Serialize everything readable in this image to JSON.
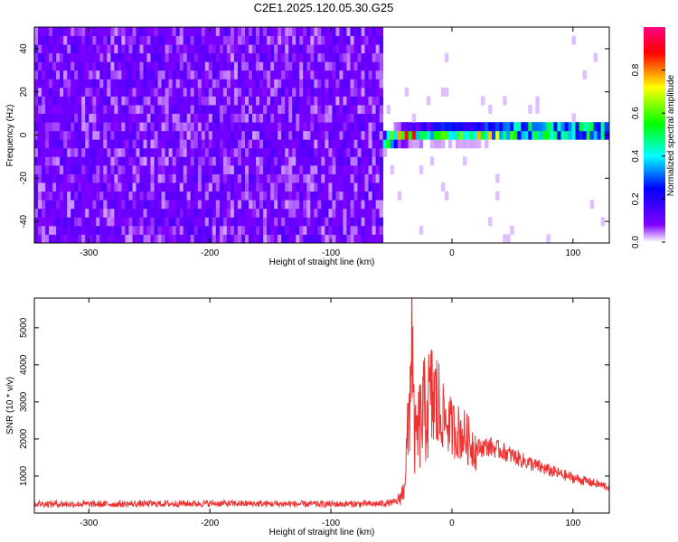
{
  "title": "C2E1.2025.120.05.30.G25",
  "chart_data": [
    {
      "type": "heatmap",
      "xlabel": "Height of straight line (km)",
      "ylabel": "Frequency (Hz)",
      "xlim": [
        -345,
        130
      ],
      "ylim": [
        -50,
        50
      ],
      "x_ticks": [
        -300,
        -200,
        -100,
        0,
        100
      ],
      "y_ticks": [
        -40,
        -20,
        0,
        20,
        40
      ],
      "noise_region": {
        "x_range": [
          -345,
          -57
        ],
        "level": 0.1
      },
      "signal_band": {
        "x_range": [
          -57,
          130
        ],
        "center_hz": [
          [
            -57,
            -3
          ],
          [
            -45,
            0
          ],
          [
            -20,
            1
          ],
          [
            20,
            1
          ],
          [
            60,
            2
          ],
          [
            100,
            2
          ],
          [
            130,
            2
          ]
        ],
        "peak_amplitude": 0.95
      },
      "colorbar": {
        "label": "Normalized spectral amplitude",
        "range": [
          0,
          1
        ],
        "ticks": [
          0.0,
          0.2,
          0.4,
          0.6,
          0.8
        ],
        "colors": [
          "#ffffff",
          "#8000ff",
          "#0000ff",
          "#00ffff",
          "#00ff00",
          "#ffff00",
          "#ff0000",
          "#ff0080"
        ]
      }
    },
    {
      "type": "line",
      "xlabel": "Height of straight line (km)",
      "ylabel": "SNR (10 * v/v)",
      "xlim": [
        -345,
        130
      ],
      "ylim": [
        0,
        5800
      ],
      "x_ticks": [
        -300,
        -200,
        -100,
        0,
        100
      ],
      "y_ticks": [
        1000,
        2000,
        3000,
        4000,
        5000
      ],
      "color": "#ee3333",
      "series": [
        {
          "x": [
            -345,
            -300,
            -250,
            -200,
            -150,
            -100,
            -60,
            -45,
            -40,
            -36,
            -34,
            -33,
            -32,
            -30,
            -25,
            -20,
            -15,
            -10,
            -5,
            0,
            5,
            10,
            15,
            20,
            30,
            40,
            60,
            80,
            100,
            130
          ],
          "y": [
            250,
            240,
            250,
            260,
            250,
            240,
            250,
            300,
            600,
            2200,
            4000,
            5700,
            2500,
            1900,
            2600,
            2900,
            3100,
            2700,
            2500,
            2300,
            2200,
            2100,
            1900,
            1750,
            1800,
            1700,
            1400,
            1150,
            950,
            700
          ]
        }
      ]
    }
  ]
}
